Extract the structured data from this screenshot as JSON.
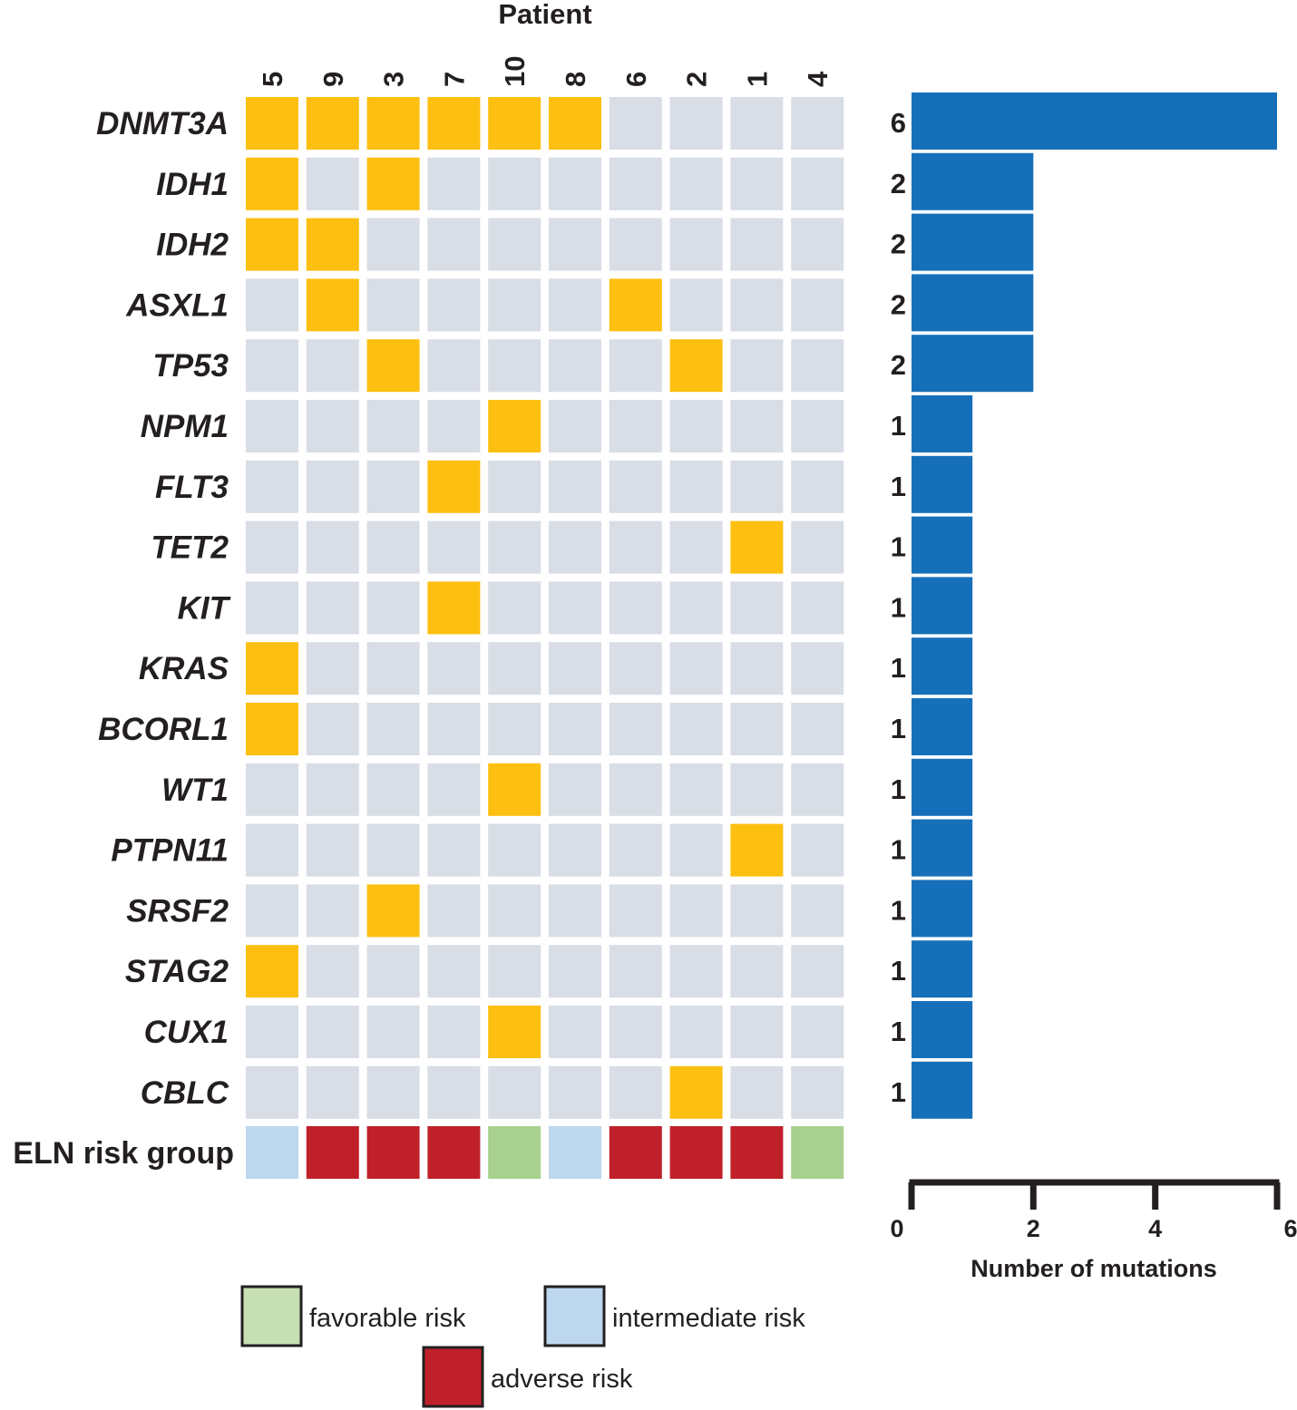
{
  "colors": {
    "mutated": "#fdbf10",
    "not_mutated": "#d8dde6",
    "bar": "#1670b9",
    "favorable": "#a8d08e",
    "intermediate": "#bdd7ee",
    "adverse": "#c0202a",
    "favorable_legend": "#c6e0b4",
    "intermediate_legend": "#bdd7ee",
    "adverse_legend": "#c0202a",
    "axis": "#231f20"
  },
  "chart_data": [
    {
      "type": "heatmap",
      "title": "Patient",
      "patients": [
        "5",
        "9",
        "3",
        "7",
        "10",
        "8",
        "6",
        "2",
        "1",
        "4"
      ],
      "genes": [
        "DNMT3A",
        "IDH1",
        "IDH2",
        "ASXL1",
        "TP53",
        "NPM1",
        "FLT3",
        "TET2",
        "KIT",
        "KRAS",
        "BCORL1",
        "WT1",
        "PTPN11",
        "SRSF2",
        "STAG2",
        "CUX1",
        "CBLC"
      ],
      "matrix": [
        [
          1,
          1,
          1,
          1,
          1,
          1,
          0,
          0,
          0,
          0
        ],
        [
          1,
          0,
          1,
          0,
          0,
          0,
          0,
          0,
          0,
          0
        ],
        [
          1,
          1,
          0,
          0,
          0,
          0,
          0,
          0,
          0,
          0
        ],
        [
          0,
          1,
          0,
          0,
          0,
          0,
          1,
          0,
          0,
          0
        ],
        [
          0,
          0,
          1,
          0,
          0,
          0,
          0,
          1,
          0,
          0
        ],
        [
          0,
          0,
          0,
          0,
          1,
          0,
          0,
          0,
          0,
          0
        ],
        [
          0,
          0,
          0,
          1,
          0,
          0,
          0,
          0,
          0,
          0
        ],
        [
          0,
          0,
          0,
          0,
          0,
          0,
          0,
          0,
          1,
          0
        ],
        [
          0,
          0,
          0,
          1,
          0,
          0,
          0,
          0,
          0,
          0
        ],
        [
          1,
          0,
          0,
          0,
          0,
          0,
          0,
          0,
          0,
          0
        ],
        [
          1,
          0,
          0,
          0,
          0,
          0,
          0,
          0,
          0,
          0
        ],
        [
          0,
          0,
          0,
          0,
          1,
          0,
          0,
          0,
          0,
          0
        ],
        [
          0,
          0,
          0,
          0,
          0,
          0,
          0,
          0,
          1,
          0
        ],
        [
          0,
          0,
          1,
          0,
          0,
          0,
          0,
          0,
          0,
          0
        ],
        [
          1,
          0,
          0,
          0,
          0,
          0,
          0,
          0,
          0,
          0
        ],
        [
          0,
          0,
          0,
          0,
          1,
          0,
          0,
          0,
          0,
          0
        ],
        [
          0,
          0,
          0,
          0,
          0,
          0,
          0,
          1,
          0,
          0
        ]
      ],
      "risk_row_label": "ELN risk group",
      "risk_groups": [
        "intermediate",
        "adverse",
        "adverse",
        "adverse",
        "favorable",
        "intermediate",
        "adverse",
        "adverse",
        "adverse",
        "favorable"
      ]
    },
    {
      "type": "bar",
      "orientation": "horizontal",
      "categories": [
        "DNMT3A",
        "IDH1",
        "IDH2",
        "ASXL1",
        "TP53",
        "NPM1",
        "FLT3",
        "TET2",
        "KIT",
        "KRAS",
        "BCORL1",
        "WT1",
        "PTPN11",
        "SRSF2",
        "STAG2",
        "CUX1",
        "CBLC"
      ],
      "values": [
        6,
        2,
        2,
        2,
        2,
        1,
        1,
        1,
        1,
        1,
        1,
        1,
        1,
        1,
        1,
        1,
        1
      ],
      "value_labels": [
        "6",
        "2",
        "2",
        "2",
        "2",
        "1",
        "1",
        "1",
        "1",
        "1",
        "1",
        "1",
        "1",
        "1",
        "1",
        "1",
        "1"
      ],
      "xlabel": "Number of mutations",
      "xlim": [
        0,
        6
      ],
      "xticks": [
        "0",
        "2",
        "4",
        "6"
      ]
    }
  ],
  "legend": {
    "placement": "bottom",
    "items": [
      {
        "key": "favorable",
        "label": "favorable risk"
      },
      {
        "key": "intermediate",
        "label": "intermediate risk"
      },
      {
        "key": "adverse",
        "label": "adverse risk"
      }
    ]
  }
}
